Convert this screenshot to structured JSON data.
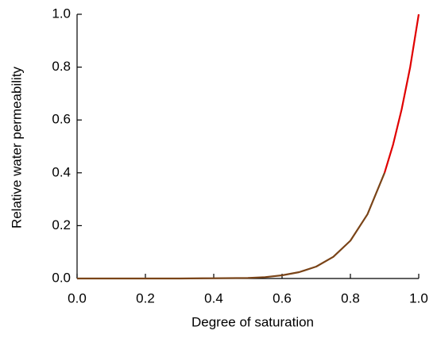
{
  "chart_data": {
    "type": "line",
    "xlabel": "Degree of saturation",
    "ylabel": "Relative water permeability",
    "xlim": [
      0,
      1
    ],
    "ylim": [
      0,
      1
    ],
    "xticks": [
      {
        "value": 0,
        "label": "0.0"
      },
      0.2,
      0.4,
      0.6,
      0.8,
      {
        "value": 1,
        "label": "1.0"
      }
    ],
    "yticks": [
      {
        "value": 0,
        "label": "0.0"
      },
      0.2,
      0.4,
      0.6,
      0.8,
      {
        "value": 1,
        "label": "1.0"
      }
    ],
    "series": [
      {
        "color": "#e00000",
        "x": [
          0.9,
          0.925,
          0.95,
          0.975,
          1.0
        ],
        "values": [
          0.4,
          0.507,
          0.64,
          0.8,
          1.0
        ]
      },
      {
        "color": "#7a4418",
        "x": [
          0,
          0.1,
          0.2,
          0.3,
          0.4,
          0.5,
          0.55,
          0.6,
          0.65,
          0.7,
          0.75,
          0.8,
          0.85,
          0.9
        ],
        "values": [
          0,
          0,
          0,
          0,
          0.001,
          0.002,
          0.005,
          0.012,
          0.024,
          0.045,
          0.082,
          0.143,
          0.243,
          0.4
        ]
      }
    ]
  }
}
